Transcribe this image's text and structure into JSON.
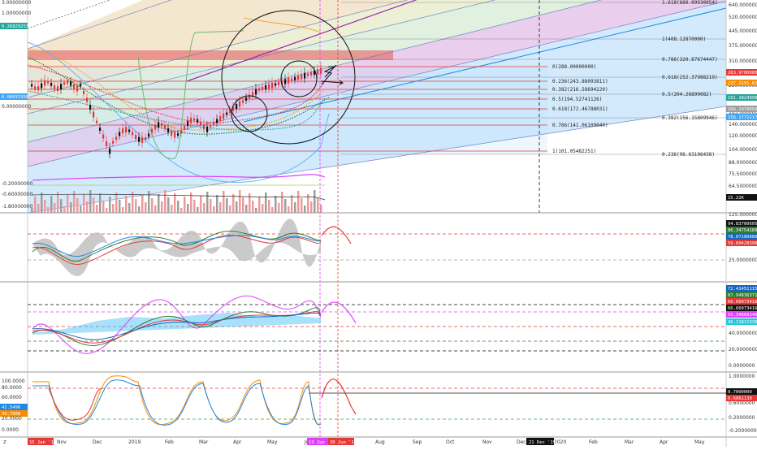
{
  "colors": {
    "red": "#e53935",
    "magenta": "#e040fb",
    "blue": "#1565c0",
    "green": "#2e7d32",
    "orange": "#fb8c00",
    "black": "#111111",
    "teal": "#26a69a",
    "lightblue": "#90caf9"
  },
  "main": {
    "left_axis_labels": [
      "3.00000000",
      "1.00000000",
      "0.26829253",
      "0.00031958",
      "0.00000000",
      "-0.20000000",
      "-0.60000000",
      "-1.80000000"
    ],
    "right_axis_labels": [
      "640.0000000",
      "520.0000000",
      "445.0000000",
      "375.0000000",
      "310.0000000",
      "220.0000000",
      "165.0000000",
      "140.0000000",
      "120.0000000",
      "104.0000000",
      "88.0000000",
      "75.5000000",
      "64.5000000",
      "53.5000000"
    ],
    "price_boxes": [
      {
        "text": "263.9700000",
        "color": "#e53935"
      },
      {
        "text": "237.1191.6267",
        "color": "#fb8c00"
      },
      {
        "text": "191.1824990",
        "color": "#26a69a"
      },
      {
        "text": "166.1979993",
        "color": "#9e9e9e"
      },
      {
        "text": "156.1771217",
        "color": "#42a5f5"
      },
      {
        "text": "15.22K",
        "color": "#111111"
      }
    ],
    "fib_retracement": [
      {
        "label": "0(288.00000000)"
      },
      {
        "label": "0.236(243.88093811)"
      },
      {
        "label": "0.382(216.58694220)"
      },
      {
        "label": "0.5(194.52741126)"
      },
      {
        "label": "0.618(172.46788031)"
      },
      {
        "label": "0.786(141.06109049)"
      },
      {
        "label": "1(101.05482251)"
      }
    ],
    "fib_channel": [
      {
        "label": "1.618(660.09930054)"
      },
      {
        "label": "1(408.12870000)"
      },
      {
        "label": "0.786(320.87674447)"
      },
      {
        "label": "0.618(252.37988219)"
      },
      {
        "label": "0.5(204.26899082)"
      },
      {
        "label": "0.382(156.15809946)"
      },
      {
        "label": "0.236(96.63106438)"
      }
    ]
  },
  "pane2": {
    "right_axis_labels": [
      "125.0000000",
      "25.0000000"
    ],
    "value_boxes": [
      {
        "text": "94.83700605",
        "color": "#111111"
      },
      {
        "text": "86.34754189",
        "color": "#2e7d32"
      },
      {
        "text": "78.07180880",
        "color": "#1565c0"
      },
      {
        "text": "59.60428390",
        "color": "#e53935"
      }
    ]
  },
  "pane3": {
    "right_axis_labels": [
      "40.0000000",
      "20.0000000",
      "0.0000000"
    ],
    "value_boxes": [
      {
        "text": "72.41451115",
        "color": "#1565c0"
      },
      {
        "text": "67.94836371",
        "color": "#2e7d32"
      },
      {
        "text": "66.66073416",
        "color": "#e53935"
      },
      {
        "text": "66.66073416",
        "color": "#111111"
      },
      {
        "text": "55.34868340",
        "color": "#e040fb"
      },
      {
        "text": "46.11811330",
        "color": "#26c6da"
      }
    ]
  },
  "pane4": {
    "left_axis_labels": [
      "100.0000",
      "80.0000",
      "60.0000",
      "42.5496",
      "39.7008",
      "20.0000",
      "0.0000"
    ],
    "right_axis_labels": [
      "1.0000000",
      "0.6000000",
      "0.2000000",
      "-0.2000000"
    ],
    "value_boxes": [
      {
        "text": "0.7000000",
        "color": "#111111"
      },
      {
        "text": "0.6061130",
        "color": "#e53935"
      }
    ]
  },
  "time_axis": {
    "labels": [
      "Nov",
      "Dec",
      "2019",
      "Feb",
      "Mar",
      "Apr",
      "May",
      "Jun",
      "Aug",
      "Sep",
      "Oct",
      "Nov",
      "Dec",
      "2020",
      "Feb",
      "Mar",
      "Apr",
      "May"
    ],
    "start_badge": "15 Jan '18",
    "mid_badge": "13 Jun '19",
    "mid_badge2": "30 Jun '19",
    "cursor_badge": "21 Dec '19"
  },
  "corner_icon": "tradingview-logo-icon"
}
